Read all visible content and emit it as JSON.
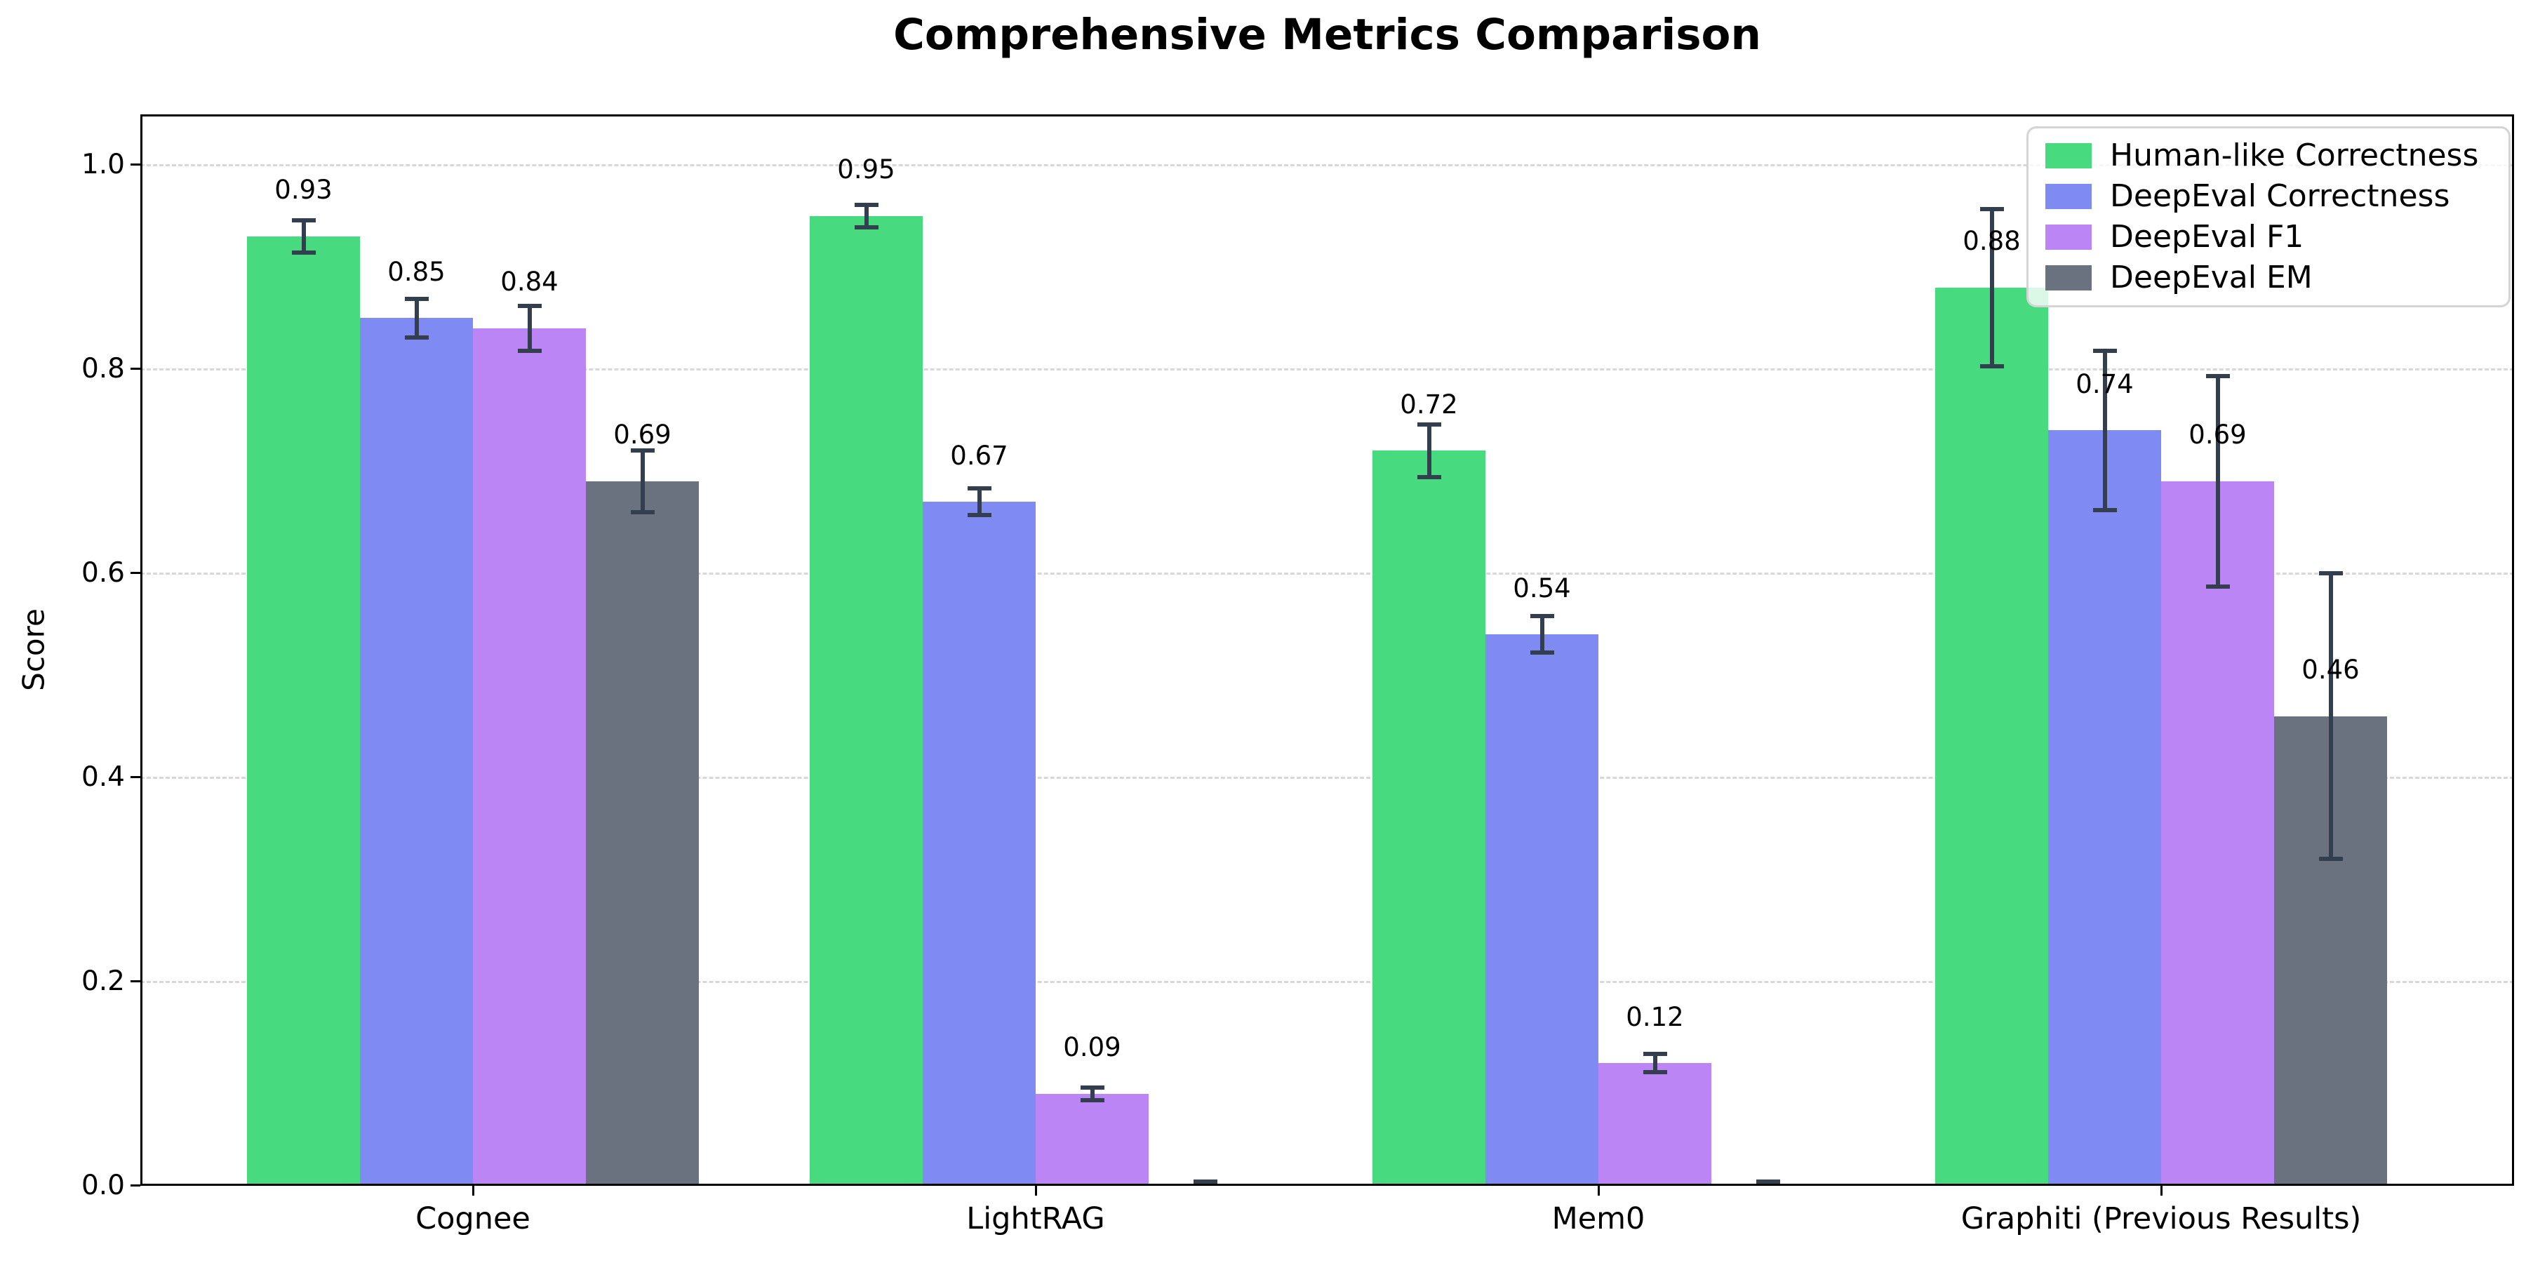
{
  "figure": {
    "title": "Comprehensive Metrics Comparison"
  },
  "chart_data": {
    "type": "bar",
    "title": "Comprehensive Metrics Comparison",
    "xlabel": "",
    "ylabel": "Score",
    "categories": [
      "Cognee",
      "LightRAG",
      "Mem0",
      "Graphiti (Previous Results)"
    ],
    "yticks": [
      0.0,
      0.2,
      0.4,
      0.6,
      0.8,
      1.0
    ],
    "ylim": [
      0.0,
      1.05
    ],
    "grid": {
      "axis": "y",
      "style": "dashed",
      "color": "#d8d8d8"
    },
    "legend": {
      "position": "upper right",
      "entries": [
        "Human-like Correctness",
        "DeepEval Correctness",
        "DeepEval F1",
        "DeepEval EM"
      ]
    },
    "error_bar_color": "#333e4f",
    "series": [
      {
        "name": "Human-like Correctness",
        "color": "#47da7e",
        "values": [
          0.93,
          0.95,
          0.72,
          0.88
        ],
        "errors": [
          0.016,
          0.011,
          0.026,
          0.077
        ],
        "labels": [
          "0.93",
          "0.95",
          "0.72",
          "0.88"
        ]
      },
      {
        "name": "DeepEval Correctness",
        "color": "#7f8bf2",
        "values": [
          0.85,
          0.67,
          0.54,
          0.74
        ],
        "errors": [
          0.019,
          0.013,
          0.018,
          0.078
        ],
        "labels": [
          "0.85",
          "0.67",
          "0.54",
          "0.74"
        ]
      },
      {
        "name": "DeepEval F1",
        "color": "#bc85f5",
        "values": [
          0.84,
          0.09,
          0.12,
          0.69
        ],
        "errors": [
          0.022,
          0.006,
          0.009,
          0.103
        ],
        "labels": [
          "0.84",
          "0.09",
          "0.12",
          "0.69"
        ]
      },
      {
        "name": "DeepEval EM",
        "color": "#6a7280",
        "values": [
          0.69,
          0.0,
          0.0,
          0.46
        ],
        "errors": [
          0.03,
          0.004,
          0.004,
          0.14
        ],
        "labels": [
          "0.69",
          null,
          null,
          "0.46"
        ]
      }
    ]
  }
}
